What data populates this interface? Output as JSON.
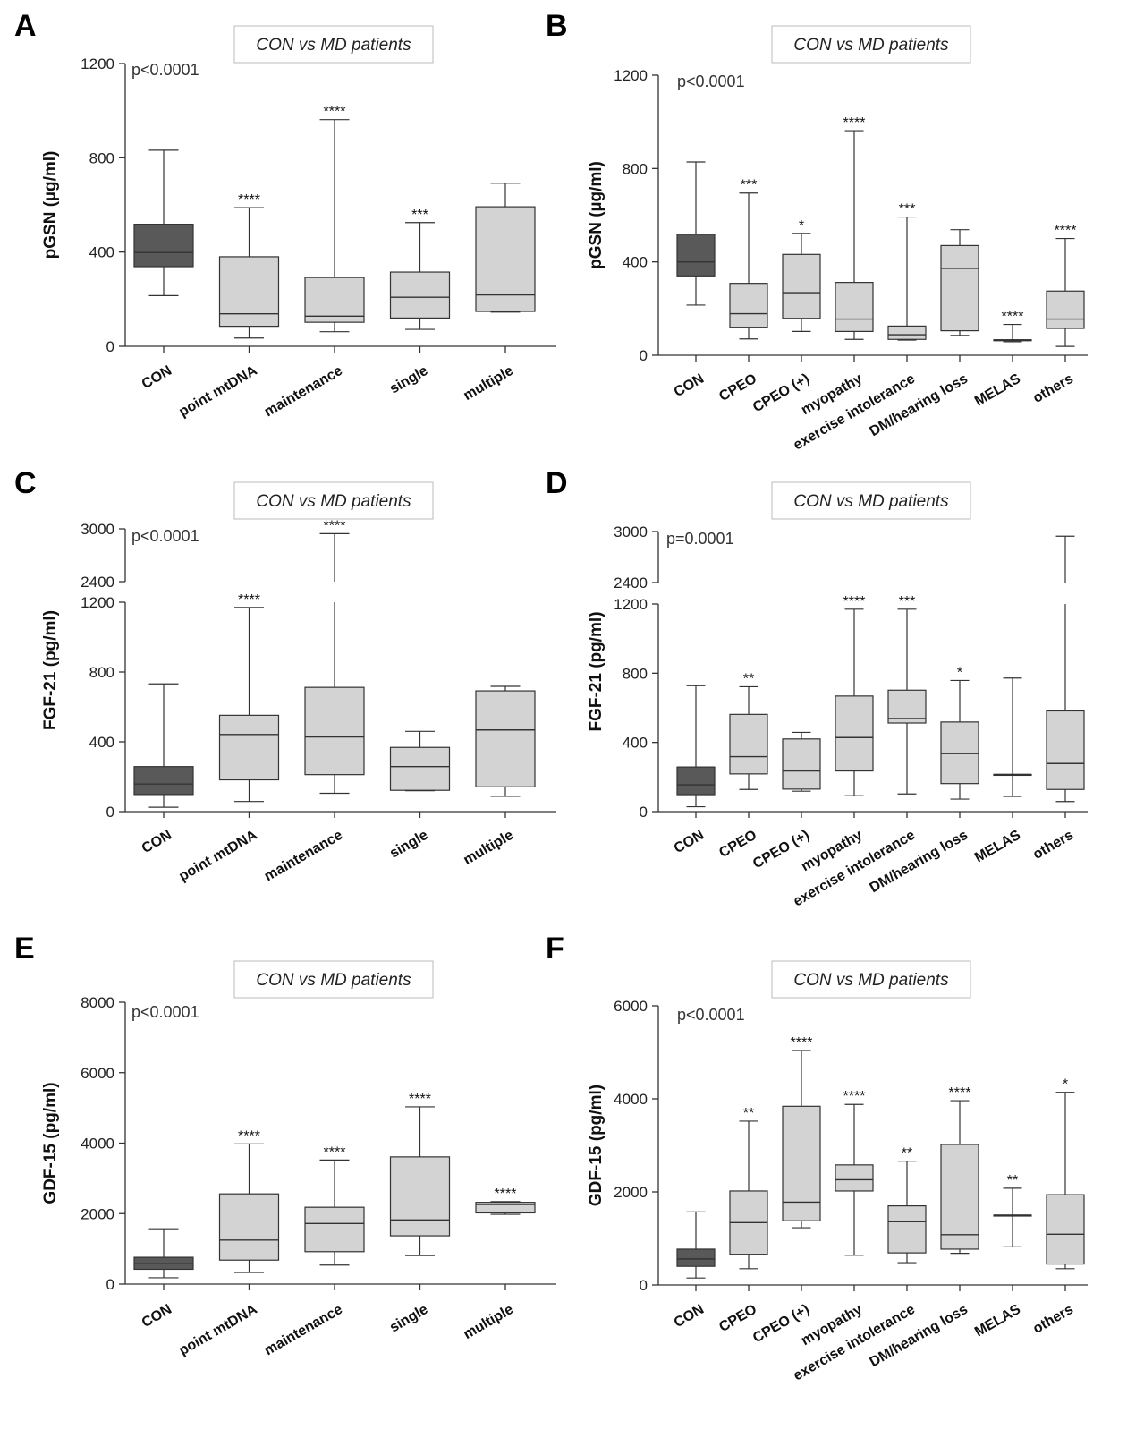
{
  "chart_data": [
    {
      "type": "box",
      "panel_label": "A",
      "title": "CON vs MD patients",
      "ylabel": "pGSN (µg/ml)",
      "ylim": [
        0,
        1200
      ],
      "yticks": [
        0,
        400,
        800,
        1200
      ],
      "pvalue": "p<0.0001",
      "categories": [
        "CON",
        "point mtDNA",
        "maintenance",
        "single",
        "multiple"
      ],
      "boxes": [
        {
          "min": 215,
          "q1": 338,
          "median": 398,
          "q3": 518,
          "max": 832,
          "sig": ""
        },
        {
          "min": 35,
          "q1": 85,
          "median": 138,
          "q3": 380,
          "max": 588,
          "sig": "****"
        },
        {
          "min": 62,
          "q1": 102,
          "median": 128,
          "q3": 292,
          "max": 962,
          "sig": "****"
        },
        {
          "min": 72,
          "q1": 120,
          "median": 208,
          "q3": 315,
          "max": 525,
          "sig": "***"
        },
        {
          "min": 145,
          "q1": 148,
          "median": 218,
          "q3": 592,
          "max": 692,
          "sig": ""
        }
      ]
    },
    {
      "type": "box",
      "panel_label": "B",
      "title": "CON vs MD patients",
      "ylabel": "pGSN (µg/ml)",
      "ylim": [
        0,
        1200
      ],
      "yticks": [
        0,
        400,
        800,
        1200
      ],
      "pvalue": "p<0.0001",
      "categories": [
        "CON",
        "CPEO",
        "CPEO (+)",
        "myopathy",
        "exercise intolerance",
        "DM/hearing loss",
        "MELAS",
        "others"
      ],
      "boxes": [
        {
          "min": 215,
          "q1": 340,
          "median": 400,
          "q3": 518,
          "max": 828,
          "sig": ""
        },
        {
          "min": 70,
          "q1": 120,
          "median": 178,
          "q3": 308,
          "max": 695,
          "sig": "***"
        },
        {
          "min": 102,
          "q1": 158,
          "median": 268,
          "q3": 432,
          "max": 522,
          "sig": "*"
        },
        {
          "min": 68,
          "q1": 102,
          "median": 155,
          "q3": 312,
          "max": 962,
          "sig": "****"
        },
        {
          "min": 65,
          "q1": 68,
          "median": 88,
          "q3": 125,
          "max": 592,
          "sig": "***"
        },
        {
          "min": 85,
          "q1": 105,
          "median": 372,
          "q3": 470,
          "max": 538,
          "sig": ""
        },
        {
          "min": 58,
          "q1": 66,
          "median": 66,
          "q3": 66,
          "max": 132,
          "sig": "****"
        },
        {
          "min": 38,
          "q1": 115,
          "median": 155,
          "q3": 275,
          "max": 500,
          "sig": "****"
        }
      ]
    },
    {
      "type": "box",
      "panel_label": "C",
      "title": "CON vs MD patients",
      "ylabel": "FGF-21 (pg/ml)",
      "ylim": [
        0,
        3000
      ],
      "axis_break": [
        1200,
        2400
      ],
      "yticks": [
        0,
        400,
        800,
        1200,
        2400,
        3000
      ],
      "pvalue": "p<0.0001",
      "categories": [
        "CON",
        "point mtDNA",
        "maintenance",
        "single",
        "multiple"
      ],
      "boxes": [
        {
          "min": 25,
          "q1": 98,
          "median": 158,
          "q3": 258,
          "max": 732,
          "sig": ""
        },
        {
          "min": 58,
          "q1": 182,
          "median": 442,
          "q3": 552,
          "max": 1170,
          "sig": "****"
        },
        {
          "min": 105,
          "q1": 212,
          "median": 428,
          "q3": 712,
          "max": 2945,
          "sig": "****"
        },
        {
          "min": 120,
          "q1": 122,
          "median": 258,
          "q3": 368,
          "max": 460,
          "sig": ""
        },
        {
          "min": 88,
          "q1": 142,
          "median": 468,
          "q3": 692,
          "max": 718,
          "sig": ""
        }
      ]
    },
    {
      "type": "box",
      "panel_label": "D",
      "title": "CON vs MD patients",
      "ylabel": "FGF-21 (pg/ml)",
      "ylim": [
        0,
        3000
      ],
      "axis_break": [
        1200,
        2400
      ],
      "yticks": [
        0,
        400,
        800,
        1200,
        2400,
        3000
      ],
      "pvalue": "p=0.0001",
      "categories": [
        "CON",
        "CPEO",
        "CPEO (+)",
        "myopathy",
        "exercise intolerance",
        "DM/hearing loss",
        "MELAS",
        "others"
      ],
      "boxes": [
        {
          "min": 28,
          "q1": 98,
          "median": 155,
          "q3": 258,
          "max": 728,
          "sig": ""
        },
        {
          "min": 128,
          "q1": 218,
          "median": 318,
          "q3": 562,
          "max": 722,
          "sig": "**"
        },
        {
          "min": 118,
          "q1": 130,
          "median": 235,
          "q3": 420,
          "max": 458,
          "sig": ""
        },
        {
          "min": 92,
          "q1": 235,
          "median": 428,
          "q3": 668,
          "max": 1170,
          "sig": "****"
        },
        {
          "min": 102,
          "q1": 512,
          "median": 538,
          "q3": 702,
          "max": 1170,
          "sig": "***"
        },
        {
          "min": 72,
          "q1": 162,
          "median": 335,
          "q3": 518,
          "max": 758,
          "sig": "*"
        },
        {
          "min": 88,
          "q1": 215,
          "median": 215,
          "q3": 215,
          "max": 772,
          "sig": ""
        },
        {
          "min": 58,
          "q1": 128,
          "median": 278,
          "q3": 582,
          "max": 2945,
          "sig": ""
        }
      ]
    },
    {
      "type": "box",
      "panel_label": "E",
      "title": "CON vs MD patients",
      "ylabel": "GDF-15 (pg/ml)",
      "ylim": [
        0,
        8000
      ],
      "yticks": [
        0,
        2000,
        4000,
        6000,
        8000
      ],
      "pvalue": "p<0.0001",
      "categories": [
        "CON",
        "point mtDNA",
        "maintenance",
        "single",
        "multiple"
      ],
      "boxes": [
        {
          "min": 180,
          "q1": 420,
          "median": 580,
          "q3": 760,
          "max": 1570,
          "sig": ""
        },
        {
          "min": 330,
          "q1": 680,
          "median": 1250,
          "q3": 2560,
          "max": 3980,
          "sig": "****"
        },
        {
          "min": 540,
          "q1": 920,
          "median": 1720,
          "q3": 2180,
          "max": 3520,
          "sig": "****"
        },
        {
          "min": 810,
          "q1": 1370,
          "median": 1820,
          "q3": 3610,
          "max": 5030,
          "sig": "****"
        },
        {
          "min": 1980,
          "q1": 2020,
          "median": 2260,
          "q3": 2320,
          "max": 2340,
          "sig": "****"
        }
      ]
    },
    {
      "type": "box",
      "panel_label": "F",
      "title": "CON vs MD patients",
      "ylabel": "GDF-15 (pg/ml)",
      "ylim": [
        0,
        6000
      ],
      "yticks": [
        0,
        2000,
        4000,
        6000
      ],
      "pvalue": "p<0.0001",
      "categories": [
        "CON",
        "CPEO",
        "CPEO (+)",
        "myopathy",
        "exercise intolerance",
        "DM/hearing loss",
        "MELAS",
        "others"
      ],
      "boxes": [
        {
          "min": 150,
          "q1": 400,
          "median": 560,
          "q3": 770,
          "max": 1570,
          "sig": ""
        },
        {
          "min": 350,
          "q1": 660,
          "median": 1340,
          "q3": 2020,
          "max": 3520,
          "sig": "**"
        },
        {
          "min": 1230,
          "q1": 1380,
          "median": 1780,
          "q3": 3840,
          "max": 5040,
          "sig": "****"
        },
        {
          "min": 640,
          "q1": 2020,
          "median": 2260,
          "q3": 2580,
          "max": 3880,
          "sig": "****"
        },
        {
          "min": 480,
          "q1": 690,
          "median": 1360,
          "q3": 1700,
          "max": 2660,
          "sig": "**"
        },
        {
          "min": 680,
          "q1": 770,
          "median": 1080,
          "q3": 3020,
          "max": 3960,
          "sig": "****"
        },
        {
          "min": 820,
          "q1": 1500,
          "median": 1500,
          "q3": 1500,
          "max": 2080,
          "sig": "**"
        },
        {
          "min": 350,
          "q1": 450,
          "median": 1090,
          "q3": 1940,
          "max": 4140,
          "sig": "*"
        }
      ]
    }
  ],
  "colors": {
    "control_box": "#595959",
    "patient_box": "#d3d3d3",
    "line": "#333333"
  }
}
